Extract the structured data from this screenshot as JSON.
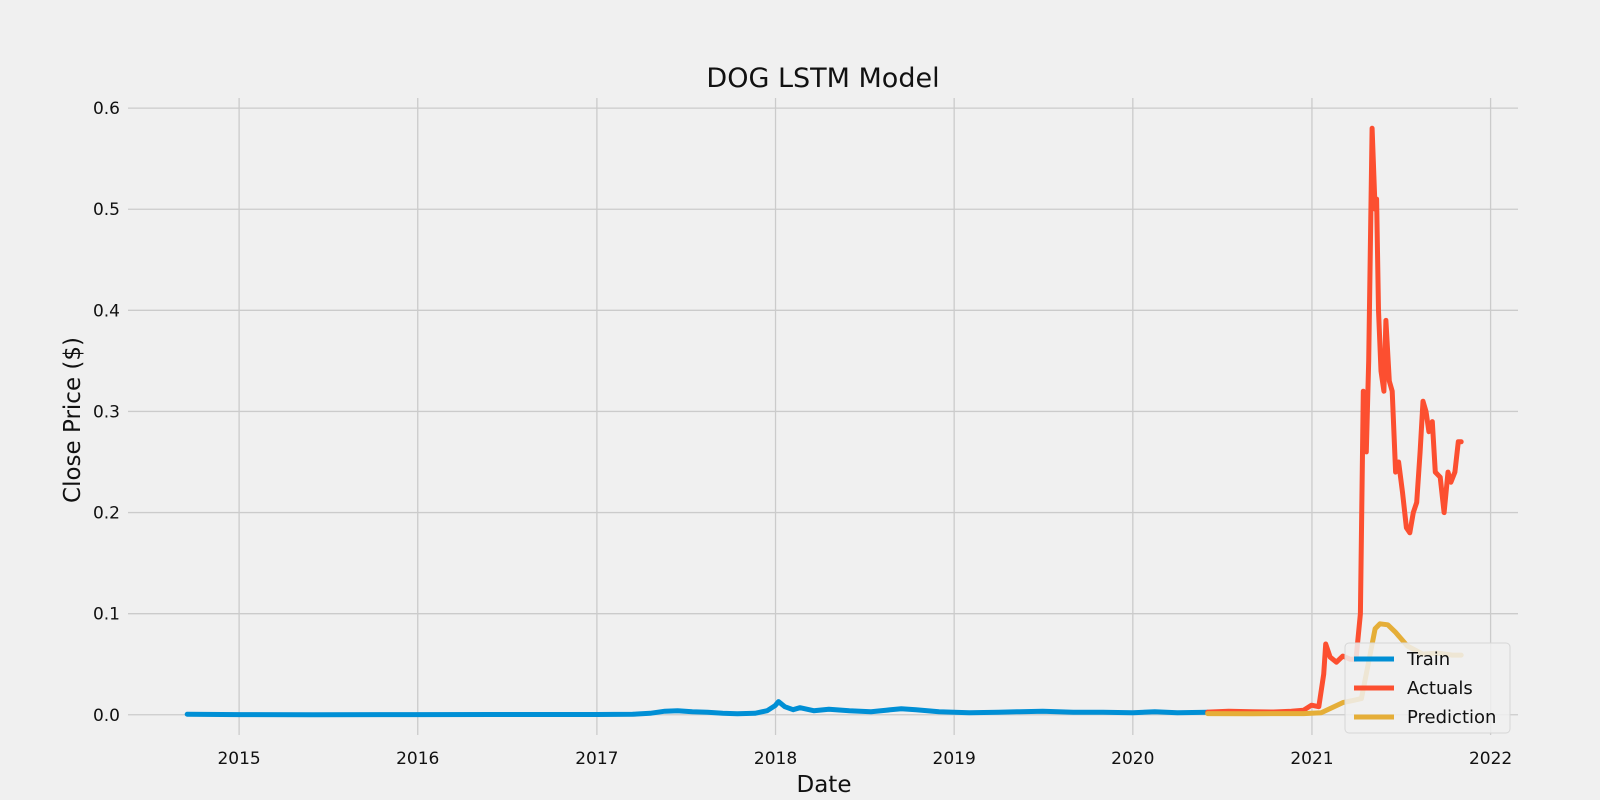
{
  "chart_data": {
    "type": "line",
    "title": "DOG LSTM Model",
    "xlabel": "Date",
    "ylabel": "Close Price ($)",
    "x_ticks": [
      "2015",
      "2016",
      "2017",
      "2018",
      "2019",
      "2020",
      "2021",
      "2022"
    ],
    "y_ticks": [
      "0.0",
      "0.1",
      "0.2",
      "0.3",
      "0.4",
      "0.5",
      "0.6"
    ],
    "xlim": [
      "2014-05-19",
      "2022-02-26"
    ],
    "ylim": [
      -0.02,
      0.61
    ],
    "grid": true,
    "legend_position": "lower right",
    "series": [
      {
        "name": "Train",
        "color": "#008fd5",
        "points": [
          [
            "2014-09-17",
            0.0005
          ],
          [
            "2015-01-01",
            0.0002
          ],
          [
            "2015-06-01",
            0.0001
          ],
          [
            "2016-01-01",
            0.0002
          ],
          [
            "2016-06-01",
            0.0003
          ],
          [
            "2017-01-01",
            0.0003
          ],
          [
            "2017-03-15",
            0.0005
          ],
          [
            "2017-04-20",
            0.0015
          ],
          [
            "2017-05-20",
            0.0035
          ],
          [
            "2017-06-15",
            0.004
          ],
          [
            "2017-07-15",
            0.003
          ],
          [
            "2017-08-15",
            0.0025
          ],
          [
            "2017-09-15",
            0.0015
          ],
          [
            "2017-10-15",
            0.001
          ],
          [
            "2017-11-20",
            0.0015
          ],
          [
            "2017-12-15",
            0.004
          ],
          [
            "2017-12-31",
            0.009
          ],
          [
            "2018-01-07",
            0.013
          ],
          [
            "2018-01-20",
            0.008
          ],
          [
            "2018-02-06",
            0.005
          ],
          [
            "2018-02-20",
            0.007
          ],
          [
            "2018-03-20",
            0.004
          ],
          [
            "2018-04-20",
            0.0055
          ],
          [
            "2018-06-01",
            0.004
          ],
          [
            "2018-07-15",
            0.003
          ],
          [
            "2018-08-15",
            0.0045
          ],
          [
            "2018-09-15",
            0.006
          ],
          [
            "2018-10-15",
            0.005
          ],
          [
            "2018-12-01",
            0.003
          ],
          [
            "2019-02-01",
            0.002
          ],
          [
            "2019-04-01",
            0.0025
          ],
          [
            "2019-05-15",
            0.003
          ],
          [
            "2019-07-01",
            0.0035
          ],
          [
            "2019-09-01",
            0.0025
          ],
          [
            "2019-11-01",
            0.0025
          ],
          [
            "2020-01-01",
            0.002
          ],
          [
            "2020-02-15",
            0.003
          ],
          [
            "2020-04-01",
            0.002
          ],
          [
            "2020-06-01",
            0.0025
          ]
        ]
      },
      {
        "name": "Actuals",
        "color": "#fc4f30",
        "points": [
          [
            "2020-06-02",
            0.0026
          ],
          [
            "2020-07-15",
            0.0035
          ],
          [
            "2020-09-01",
            0.003
          ],
          [
            "2020-10-15",
            0.0027
          ],
          [
            "2020-11-20",
            0.0035
          ],
          [
            "2020-12-15",
            0.0045
          ],
          [
            "2020-12-31",
            0.0095
          ],
          [
            "2021-01-15",
            0.008
          ],
          [
            "2021-01-25",
            0.04
          ],
          [
            "2021-01-29",
            0.07
          ],
          [
            "2021-02-07",
            0.057
          ],
          [
            "2021-02-20",
            0.052
          ],
          [
            "2021-03-05",
            0.058
          ],
          [
            "2021-03-20",
            0.055
          ],
          [
            "2021-04-01",
            0.055
          ],
          [
            "2021-04-10",
            0.1
          ],
          [
            "2021-04-16",
            0.32
          ],
          [
            "2021-04-22",
            0.26
          ],
          [
            "2021-04-27",
            0.35
          ],
          [
            "2021-05-04",
            0.58
          ],
          [
            "2021-05-10",
            0.5
          ],
          [
            "2021-05-13",
            0.51
          ],
          [
            "2021-05-17",
            0.4
          ],
          [
            "2021-05-22",
            0.34
          ],
          [
            "2021-05-28",
            0.32
          ],
          [
            "2021-06-01",
            0.39
          ],
          [
            "2021-06-08",
            0.33
          ],
          [
            "2021-06-14",
            0.32
          ],
          [
            "2021-06-21",
            0.24
          ],
          [
            "2021-06-27",
            0.25
          ],
          [
            "2021-07-05",
            0.22
          ],
          [
            "2021-07-13",
            0.185
          ],
          [
            "2021-07-20",
            0.18
          ],
          [
            "2021-07-27",
            0.2
          ],
          [
            "2021-08-03",
            0.21
          ],
          [
            "2021-08-10",
            0.26
          ],
          [
            "2021-08-16",
            0.31
          ],
          [
            "2021-08-22",
            0.3
          ],
          [
            "2021-08-28",
            0.28
          ],
          [
            "2021-09-04",
            0.29
          ],
          [
            "2021-09-10",
            0.24
          ],
          [
            "2021-09-20",
            0.235
          ],
          [
            "2021-09-28",
            0.2
          ],
          [
            "2021-10-06",
            0.24
          ],
          [
            "2021-10-12",
            0.23
          ],
          [
            "2021-10-20",
            0.24
          ],
          [
            "2021-10-27",
            0.27
          ],
          [
            "2021-11-02",
            0.27
          ]
        ]
      },
      {
        "name": "Prediction",
        "color": "#e5ae38",
        "points": [
          [
            "2020-06-02",
            0.0012
          ],
          [
            "2020-09-01",
            0.0011
          ],
          [
            "2020-12-15",
            0.0012
          ],
          [
            "2021-01-20",
            0.002
          ],
          [
            "2021-02-15",
            0.008
          ],
          [
            "2021-03-05",
            0.012
          ],
          [
            "2021-03-25",
            0.014
          ],
          [
            "2021-04-12",
            0.016
          ],
          [
            "2021-04-26",
            0.05
          ],
          [
            "2021-05-10",
            0.085
          ],
          [
            "2021-05-20",
            0.09
          ],
          [
            "2021-06-05",
            0.089
          ],
          [
            "2021-06-20",
            0.082
          ],
          [
            "2021-07-15",
            0.068
          ],
          [
            "2021-08-15",
            0.06
          ],
          [
            "2021-09-15",
            0.061
          ],
          [
            "2021-10-15",
            0.059
          ],
          [
            "2021-11-02",
            0.059
          ]
        ]
      }
    ]
  }
}
